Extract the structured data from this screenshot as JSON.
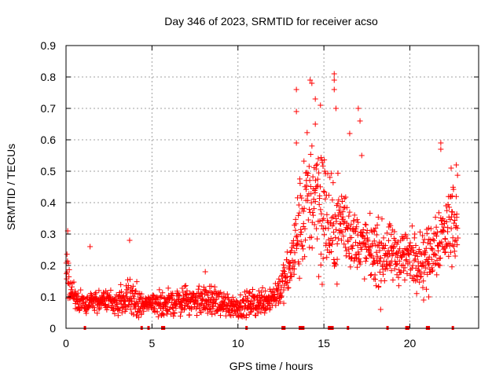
{
  "chart_data": {
    "type": "scatter",
    "title": "Day 346 of 2023, SRMTID for receiver acso",
    "xlabel": "GPS time / hours",
    "ylabel": "SRMTID / TECUs",
    "xlim": [
      0,
      24
    ],
    "ylim": [
      0,
      0.9
    ],
    "grid": true,
    "x_ticks": [
      "0",
      "5",
      "10",
      "15",
      "20"
    ],
    "y_ticks": [
      "0",
      "0.1",
      "0.2",
      "0.3",
      "0.4",
      "0.5",
      "0.6",
      "0.7",
      "0.8",
      "0.9"
    ],
    "marker": "+",
    "color": "#ff0000",
    "envelope": {
      "note": "approximate point cloud: per-hour centre value and spread in TECU",
      "x": [
        0.0,
        0.3,
        0.6,
        1.0,
        2.0,
        3.0,
        3.7,
        4.5,
        5.0,
        6.0,
        7.0,
        8.0,
        9.0,
        10.0,
        11.0,
        12.0,
        12.5,
        13.0,
        13.5,
        14.0,
        14.5,
        15.0,
        15.5,
        16.0,
        16.5,
        17.0,
        18.0,
        19.0,
        20.0,
        21.0,
        21.5,
        22.0,
        22.5
      ],
      "center": [
        0.2,
        0.12,
        0.09,
        0.08,
        0.09,
        0.08,
        0.1,
        0.07,
        0.08,
        0.08,
        0.09,
        0.09,
        0.08,
        0.07,
        0.08,
        0.1,
        0.13,
        0.18,
        0.3,
        0.4,
        0.45,
        0.38,
        0.3,
        0.35,
        0.3,
        0.27,
        0.24,
        0.23,
        0.23,
        0.22,
        0.28,
        0.3,
        0.35
      ],
      "spread": [
        0.09,
        0.04,
        0.03,
        0.03,
        0.03,
        0.03,
        0.06,
        0.03,
        0.03,
        0.04,
        0.04,
        0.04,
        0.04,
        0.03,
        0.04,
        0.04,
        0.05,
        0.07,
        0.14,
        0.18,
        0.2,
        0.2,
        0.13,
        0.13,
        0.1,
        0.08,
        0.09,
        0.08,
        0.08,
        0.08,
        0.1,
        0.1,
        0.12
      ]
    },
    "peaks": [
      {
        "x": 0.1,
        "y": 0.31
      },
      {
        "x": 1.4,
        "y": 0.26
      },
      {
        "x": 3.7,
        "y": 0.28
      },
      {
        "x": 8.1,
        "y": 0.18
      },
      {
        "x": 13.4,
        "y": 0.76
      },
      {
        "x": 13.4,
        "y": 0.69
      },
      {
        "x": 13.4,
        "y": 0.59
      },
      {
        "x": 14.2,
        "y": 0.79
      },
      {
        "x": 14.3,
        "y": 0.78
      },
      {
        "x": 14.5,
        "y": 0.73
      },
      {
        "x": 14.5,
        "y": 0.65
      },
      {
        "x": 14.8,
        "y": 0.71
      },
      {
        "x": 15.6,
        "y": 0.81
      },
      {
        "x": 15.6,
        "y": 0.79
      },
      {
        "x": 15.6,
        "y": 0.76
      },
      {
        "x": 15.7,
        "y": 0.7
      },
      {
        "x": 16.5,
        "y": 0.62
      },
      {
        "x": 17.0,
        "y": 0.7
      },
      {
        "x": 17.1,
        "y": 0.66
      },
      {
        "x": 17.2,
        "y": 0.55
      },
      {
        "x": 21.8,
        "y": 0.59
      },
      {
        "x": 21.8,
        "y": 0.57
      },
      {
        "x": 22.4,
        "y": 0.51
      },
      {
        "x": 22.7,
        "y": 0.52
      },
      {
        "x": 14.9,
        "y": 0.14
      },
      {
        "x": 18.3,
        "y": 0.06
      },
      {
        "x": 20.8,
        "y": 0.09
      },
      {
        "x": 21.1,
        "y": 0.1
      }
    ],
    "zero_markers_x": [
      1.1,
      4.4,
      4.8,
      5.6,
      5.7,
      10.5,
      12.6,
      12.7,
      13.6,
      13.7,
      13.8,
      15.3,
      15.4,
      15.5,
      16.4,
      18.7,
      19.8,
      19.9,
      21.0,
      21.1,
      22.5
    ]
  }
}
